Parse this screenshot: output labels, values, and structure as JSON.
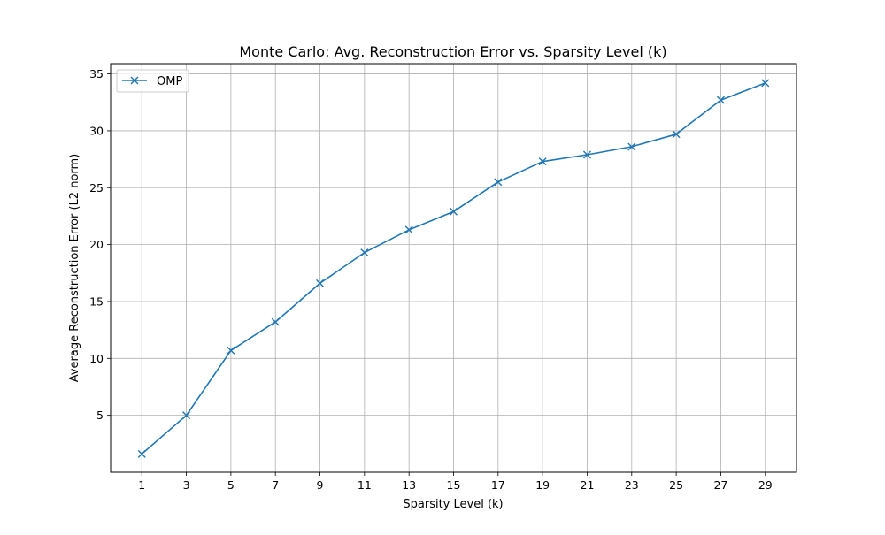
{
  "chart_data": {
    "type": "line",
    "title": "Monte Carlo: Avg. Reconstruction Error vs. Sparsity Level (k)",
    "xlabel": "Sparsity Level (k)",
    "ylabel": "Average Reconstruction Error (L2 norm)",
    "x": [
      1,
      3,
      5,
      7,
      9,
      11,
      13,
      15,
      17,
      19,
      21,
      23,
      25,
      27,
      29
    ],
    "x_ticks": [
      "1",
      "3",
      "5",
      "7",
      "9",
      "11",
      "13",
      "15",
      "17",
      "19",
      "21",
      "23",
      "25",
      "27",
      "29"
    ],
    "y_ticks": [
      "5",
      "10",
      "15",
      "20",
      "25",
      "30",
      "35"
    ],
    "xlim": [
      -0.4,
      30.4
    ],
    "ylim": [
      0.0,
      35.9
    ],
    "grid": true,
    "legend_position": "top-left",
    "series": [
      {
        "name": "OMP",
        "color": "#1f77b4",
        "marker": "x",
        "values": [
          1.6,
          5.0,
          10.7,
          13.2,
          16.6,
          19.3,
          21.3,
          22.9,
          25.5,
          27.3,
          27.9,
          28.6,
          29.7,
          32.7,
          34.2
        ]
      }
    ]
  }
}
